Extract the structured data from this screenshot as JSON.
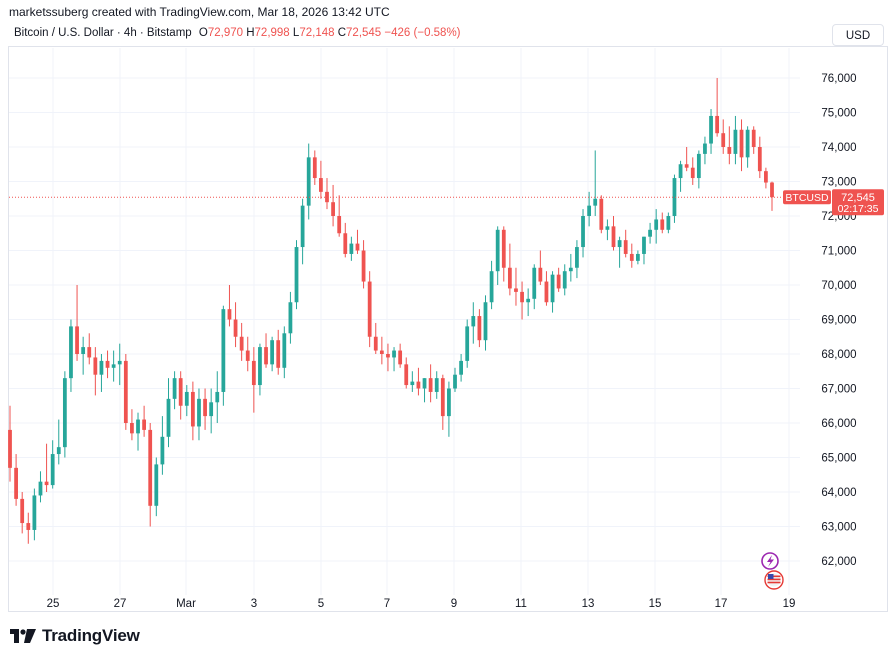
{
  "header": {
    "credit": "marketssuberg created with TradingView.com, Mar 18, 2026 13:42 UTC",
    "symbol_name": "Bitcoin / U.S. Dollar · 4h · Bitstamp",
    "o_label": "O",
    "o_value": "72,970",
    "h_label": "H",
    "h_value": "72,998",
    "l_label": "L",
    "l_value": "72,148",
    "c_label": "C",
    "c_value": "72,545",
    "change": "−426 (−0.58%)",
    "currency": "USD"
  },
  "footer": {
    "brand": "TradingView"
  },
  "price_tag": {
    "symbol": "BTCUSD",
    "price": "72,545",
    "countdown": "02:17:35"
  },
  "colors": {
    "up": "#26a69a",
    "down": "#ef5350",
    "grid": "#f0f3fa",
    "text": "#131722"
  },
  "icons": [
    "tradingview-logo-icon",
    "lightning-icon",
    "us-flag-icon"
  ],
  "chart_data": {
    "type": "candlestick",
    "symbol": "BTCUSD",
    "timeframe": "4h",
    "ylim": [
      61500,
      76500
    ],
    "y_ticks": [
      62000,
      63000,
      64000,
      65000,
      66000,
      67000,
      68000,
      69000,
      70000,
      71000,
      72000,
      73000,
      74000,
      75000,
      76000
    ],
    "y_tick_labels": [
      "62,000",
      "63,000",
      "64,000",
      "65,000",
      "66,000",
      "67,000",
      "68,000",
      "69,000",
      "70,000",
      "71,000",
      "72,000",
      "73,000",
      "74,000",
      "75,000",
      "76,000"
    ],
    "x_tick_labels": [
      "25",
      "27",
      "Mar",
      "3",
      "5",
      "7",
      "9",
      "11",
      "13",
      "15",
      "17",
      "19"
    ],
    "last_price": 72545,
    "grid": true,
    "candles": [
      [
        65800,
        66500,
        64300,
        64700
      ],
      [
        64700,
        65100,
        63600,
        63800
      ],
      [
        63800,
        64000,
        62800,
        63100
      ],
      [
        63100,
        63400,
        62500,
        62900
      ],
      [
        62900,
        64100,
        62600,
        63900
      ],
      [
        63900,
        64600,
        63700,
        64300
      ],
      [
        64300,
        65400,
        64000,
        64200
      ],
      [
        64200,
        65500,
        64100,
        65100
      ],
      [
        65100,
        66100,
        64800,
        65300
      ],
      [
        65300,
        67500,
        65000,
        67300
      ],
      [
        67300,
        69000,
        66900,
        68800
      ],
      [
        68800,
        70000,
        67800,
        68000
      ],
      [
        68000,
        68500,
        67400,
        68200
      ],
      [
        68200,
        68600,
        67700,
        67900
      ],
      [
        67900,
        68200,
        66800,
        67400
      ],
      [
        67400,
        68000,
        66900,
        67800
      ],
      [
        67800,
        68100,
        67300,
        67600
      ],
      [
        67600,
        68100,
        67200,
        67700
      ],
      [
        67700,
        68300,
        67100,
        67800
      ],
      [
        67800,
        68000,
        65800,
        66000
      ],
      [
        66000,
        66400,
        65500,
        65700
      ],
      [
        65700,
        66300,
        65200,
        66100
      ],
      [
        66100,
        66500,
        65600,
        65800
      ],
      [
        65800,
        66000,
        63000,
        63600
      ],
      [
        63600,
        65000,
        63300,
        64800
      ],
      [
        64800,
        66200,
        64500,
        65600
      ],
      [
        65600,
        67300,
        65300,
        66700
      ],
      [
        66700,
        67500,
        66400,
        67300
      ],
      [
        67300,
        67500,
        66100,
        66500
      ],
      [
        66500,
        67100,
        66200,
        66900
      ],
      [
        66900,
        67200,
        65500,
        65900
      ],
      [
        65900,
        67000,
        65500,
        66700
      ],
      [
        66700,
        67000,
        65800,
        66200
      ],
      [
        66200,
        67000,
        65700,
        66600
      ],
      [
        66600,
        67500,
        66000,
        66900
      ],
      [
        66900,
        69400,
        66500,
        69300
      ],
      [
        69300,
        70000,
        68800,
        69000
      ],
      [
        69000,
        69500,
        68200,
        68500
      ],
      [
        68500,
        68900,
        67800,
        68100
      ],
      [
        68100,
        68500,
        67500,
        67800
      ],
      [
        67800,
        68200,
        66300,
        67100
      ],
      [
        67100,
        68300,
        66800,
        68200
      ],
      [
        68200,
        68600,
        67600,
        67700
      ],
      [
        67700,
        68500,
        67500,
        68400
      ],
      [
        68400,
        68700,
        67400,
        67600
      ],
      [
        67600,
        68800,
        67300,
        68600
      ],
      [
        68600,
        69800,
        68300,
        69500
      ],
      [
        69500,
        71300,
        69300,
        71100
      ],
      [
        71100,
        72500,
        70600,
        72300
      ],
      [
        72300,
        74100,
        71900,
        73700
      ],
      [
        73700,
        73900,
        72900,
        73100
      ],
      [
        73100,
        73600,
        72500,
        72700
      ],
      [
        72700,
        73100,
        72200,
        72400
      ],
      [
        72400,
        72900,
        71700,
        72000
      ],
      [
        72000,
        72600,
        71400,
        71500
      ],
      [
        71500,
        71800,
        70800,
        70900
      ],
      [
        70900,
        71400,
        70700,
        71200
      ],
      [
        71200,
        71600,
        70900,
        71000
      ],
      [
        71000,
        71300,
        69900,
        70100
      ],
      [
        70100,
        70400,
        68200,
        68500
      ],
      [
        68500,
        68900,
        68000,
        68100
      ],
      [
        68100,
        68500,
        67700,
        68000
      ],
      [
        68000,
        68300,
        67500,
        67900
      ],
      [
        67900,
        68200,
        67500,
        68100
      ],
      [
        68100,
        68300,
        67600,
        67700
      ],
      [
        67700,
        67900,
        67000,
        67100
      ],
      [
        67100,
        67500,
        66900,
        67200
      ],
      [
        67200,
        67600,
        66800,
        67000
      ],
      [
        67000,
        67300,
        66600,
        67300
      ],
      [
        67300,
        67700,
        66600,
        66900
      ],
      [
        66900,
        67500,
        66700,
        67300
      ],
      [
        67300,
        67400,
        65800,
        66200
      ],
      [
        66200,
        67200,
        65600,
        67000
      ],
      [
        67000,
        67600,
        66900,
        67400
      ],
      [
        67400,
        68000,
        67200,
        67800
      ],
      [
        67800,
        69000,
        67600,
        68800
      ],
      [
        68800,
        69500,
        68300,
        69100
      ],
      [
        69100,
        69300,
        68200,
        68400
      ],
      [
        68400,
        69700,
        68100,
        69500
      ],
      [
        69500,
        70700,
        69300,
        70400
      ],
      [
        70400,
        71700,
        70000,
        71600
      ],
      [
        71600,
        71700,
        70100,
        70500
      ],
      [
        70500,
        71200,
        69700,
        69900
      ],
      [
        69900,
        70500,
        69400,
        69800
      ],
      [
        69800,
        70100,
        69000,
        69500
      ],
      [
        69500,
        69900,
        69100,
        69600
      ],
      [
        69600,
        70600,
        69300,
        70500
      ],
      [
        70500,
        71000,
        70000,
        70100
      ],
      [
        70100,
        70400,
        69400,
        69500
      ],
      [
        69500,
        70400,
        69200,
        70300
      ],
      [
        70300,
        70500,
        69800,
        69900
      ],
      [
        69900,
        70600,
        69700,
        70400
      ],
      [
        70400,
        70900,
        70100,
        70500
      ],
      [
        70500,
        71300,
        70200,
        71100
      ],
      [
        71100,
        72200,
        70800,
        72000
      ],
      [
        72000,
        72700,
        71700,
        72300
      ],
      [
        72300,
        73900,
        72000,
        72500
      ],
      [
        72500,
        72600,
        71500,
        71600
      ],
      [
        71600,
        71900,
        71300,
        71700
      ],
      [
        71700,
        72000,
        71000,
        71100
      ],
      [
        71100,
        71400,
        70500,
        71300
      ],
      [
        71300,
        71600,
        70800,
        70900
      ],
      [
        70900,
        71200,
        70500,
        70700
      ],
      [
        70700,
        71000,
        70600,
        70900
      ],
      [
        70900,
        71400,
        70600,
        71400
      ],
      [
        71400,
        71800,
        71200,
        71600
      ],
      [
        71600,
        72200,
        71200,
        71900
      ],
      [
        71900,
        72100,
        71500,
        71600
      ],
      [
        71600,
        72100,
        71500,
        72000
      ],
      [
        72000,
        73200,
        71800,
        73100
      ],
      [
        73100,
        73600,
        72700,
        73500
      ],
      [
        73500,
        74000,
        73300,
        73400
      ],
      [
        73400,
        73700,
        72900,
        73100
      ],
      [
        73100,
        73900,
        72800,
        73800
      ],
      [
        73800,
        74300,
        73500,
        74100
      ],
      [
        74100,
        75100,
        73800,
        74900
      ],
      [
        74900,
        76000,
        74300,
        74400
      ],
      [
        74400,
        74800,
        73800,
        74000
      ],
      [
        74000,
        74600,
        73500,
        73800
      ],
      [
        73800,
        74900,
        73500,
        74500
      ],
      [
        74500,
        74800,
        73300,
        73700
      ],
      [
        73700,
        74600,
        73400,
        74500
      ],
      [
        74500,
        74600,
        73800,
        74000
      ],
      [
        74000,
        74300,
        73100,
        73300
      ],
      [
        73300,
        73400,
        72800,
        72970
      ],
      [
        72970,
        72998,
        72148,
        72545
      ]
    ]
  }
}
